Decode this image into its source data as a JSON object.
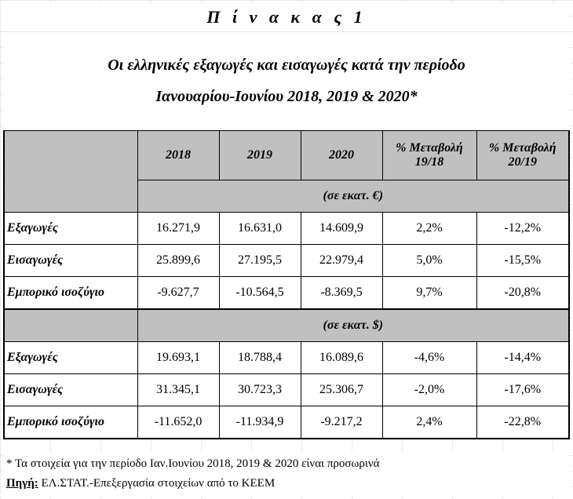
{
  "title": "Π ί ν α κ α ς   1",
  "subtitle_line1": "Οι ελληνικές εξαγωγές και εισαγωγές κατά την περίοδο",
  "subtitle_line2": "Ιανουαρίου-Ιουνίου 2018, 2019 & 2020*",
  "table": {
    "columns": [
      "2018",
      "2019",
      "2020",
      "% Μεταβολή 19/18",
      "% Μεταβολή 20/19"
    ],
    "col_change1_line1": "% Μεταβολή",
    "col_change1_line2": "19/18",
    "col_change2_line1": "% Μεταβολή",
    "col_change2_line2": "20/19",
    "sections": [
      {
        "unit": "(σε εκατ. €)",
        "rows": [
          {
            "label": "Εξαγωγές",
            "values": [
              "16.271,9",
              "16.631,0",
              "14.609,9",
              "2,2%",
              "-12,2%"
            ]
          },
          {
            "label": "Εισαγωγές",
            "values": [
              "25.899,6",
              "27.195,5",
              "22.979,4",
              "5,0%",
              "-15,5%"
            ]
          },
          {
            "label": "Εμπορικό ισοζύγιο",
            "values": [
              "-9.627,7",
              "-10.564,5",
              "-8.369,5",
              "9,7%",
              "-20,8%"
            ]
          }
        ]
      },
      {
        "unit": "(σε εκατ. $)",
        "rows": [
          {
            "label": "Εξαγωγές",
            "values": [
              "19.693,1",
              "18.788,4",
              "16.089,6",
              "-4,6%",
              "-14,4%"
            ]
          },
          {
            "label": "Εισαγωγές",
            "values": [
              "31.345,1",
              "30.723,3",
              "25.306,7",
              "-2,0%",
              "-17,6%"
            ]
          },
          {
            "label": "Εμπορικό ισοζύγιο",
            "values": [
              "-11.652,0",
              "-11.934,9",
              "-9.217,2",
              "2,4%",
              "-22,8%"
            ]
          }
        ]
      }
    ]
  },
  "footnote": "* Τα στοιχεία για την περίοδο Ιαν.Ιουνίου 2018, 2019 & 2020 είναι προσωρινά",
  "source_label": "Πηγή:",
  "source_text": " ΕΛ.ΣΤΑΤ.-Επεξεργασία στοιχείων από το ΚΕΕΜ"
}
